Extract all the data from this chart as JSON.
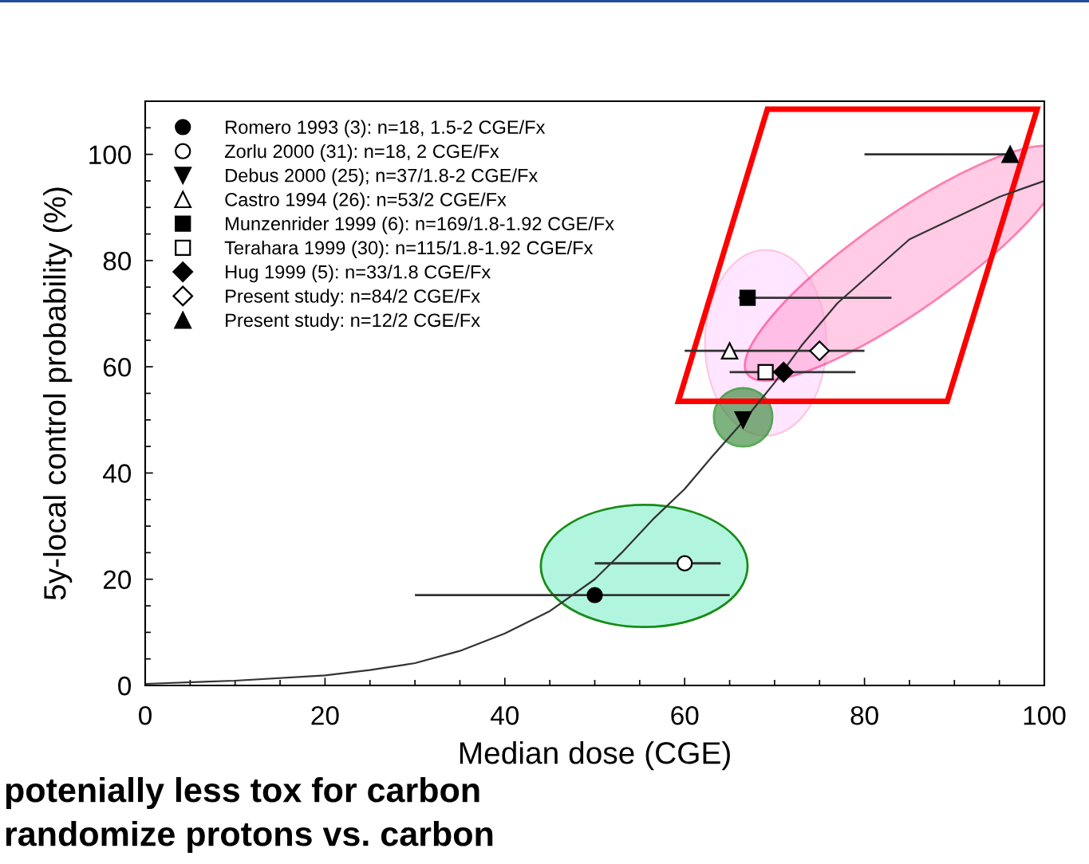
{
  "chart_data": {
    "type": "scatter",
    "xlabel": "Median dose (CGE)",
    "ylabel": "5y-local control probability (%)",
    "xlim": [
      0,
      100
    ],
    "ylim": [
      0,
      110
    ],
    "xticks": [
      0,
      {
        "value": 5,
        "label": null
      },
      {
        "value": 10,
        "label": null
      },
      {
        "value": 15,
        "label": null
      },
      20,
      {
        "value": 25,
        "label": null
      },
      {
        "value": 30,
        "label": null
      },
      {
        "value": 35,
        "label": null
      },
      40,
      {
        "value": 45,
        "label": null
      },
      {
        "value": 50,
        "label": null
      },
      {
        "value": 55,
        "label": null
      },
      60,
      {
        "value": 65,
        "label": null
      },
      {
        "value": 70,
        "label": null
      },
      {
        "value": 75,
        "label": null
      },
      80,
      {
        "value": 85,
        "label": null
      },
      {
        "value": 90,
        "label": null
      },
      {
        "value": 95,
        "label": null
      },
      100
    ],
    "yticks": [
      0,
      {
        "value": 5,
        "label": null
      },
      {
        "value": 10,
        "label": null
      },
      {
        "value": 15,
        "label": null
      },
      20,
      {
        "value": 25,
        "label": null
      },
      {
        "value": 30,
        "label": null
      },
      {
        "value": 35,
        "label": null
      },
      40,
      {
        "value": 45,
        "label": null
      },
      {
        "value": 50,
        "label": null
      },
      {
        "value": 55,
        "label": null
      },
      60,
      {
        "value": 65,
        "label": null
      },
      {
        "value": 70,
        "label": null
      },
      {
        "value": 75,
        "label": null
      },
      80,
      {
        "value": 85,
        "label": null
      },
      {
        "value": 90,
        "label": null
      },
      {
        "value": 95,
        "label": null
      },
      100,
      {
        "value": 105,
        "label": null
      }
    ],
    "grid": false,
    "legend": "top left",
    "series": [
      {
        "type": "line",
        "color": "#333333",
        "marker": "none",
        "line_style": "solid",
        "x": [
          0,
          10,
          20,
          25,
          30,
          35,
          40,
          45,
          50,
          53,
          56.6,
          60,
          63,
          66.5,
          70,
          73,
          77,
          81,
          85,
          90,
          95,
          100
        ],
        "values": [
          0.3,
          0.9,
          1.9,
          2.9,
          4.2,
          6.5,
          9.8,
          14,
          20,
          25,
          31.5,
          37,
          43,
          49.7,
          57,
          64,
          72,
          78,
          84,
          88,
          92,
          95
        ]
      },
      {
        "name": "Romero 1993 (3): n=18, 1.5-2 CGE/Fx",
        "color": "#000000",
        "marker": "circle",
        "x": [
          50
        ],
        "values": [
          17
        ],
        "xerrors": [
          [
            30,
            65
          ]
        ]
      },
      {
        "name": "Zorlu 2000 (31): n=18, 2 CGE/Fx",
        "color": "#ffffff",
        "marker": "circle",
        "x": [
          60
        ],
        "values": [
          23
        ],
        "xerrors": [
          [
            50,
            64
          ]
        ]
      },
      {
        "name": "Debus 2000 (25); n=37/1.8-2 CGE/Fx",
        "color": "#000000",
        "marker": "triangle-down",
        "x": [
          66.5
        ],
        "values": [
          50
        ]
      },
      {
        "name": "Castro 1994 (26): n=53/2 CGE/Fx",
        "color": "#ffffff",
        "marker": "triangle",
        "x": [
          65
        ],
        "values": [
          63
        ],
        "xerrors": [
          [
            60,
            80
          ]
        ]
      },
      {
        "name": "Munzenrider 1999 (6): n=169/1.8-1.92 CGE/Fx",
        "color": "#000000",
        "marker": "square",
        "x": [
          67
        ],
        "values": [
          73
        ],
        "xerrors": [
          [
            66,
            83
          ]
        ]
      },
      {
        "name": "Terahara 1999 (30): n=115/1.8-1.92 CGE/Fx",
        "color": "#ffffff",
        "marker": "square",
        "x": [
          69
        ],
        "values": [
          59
        ],
        "xerrors": [
          [
            65,
            79
          ]
        ]
      },
      {
        "name": "Hug 1999 (5): n=33/1.8 CGE/Fx",
        "color": "#000000",
        "marker": "diamond",
        "x": [
          71
        ],
        "values": [
          59
        ]
      },
      {
        "name": "Present study: n=84/2 CGE/Fx",
        "color": "#ffffff",
        "marker": "diamond",
        "x": [
          75
        ],
        "values": [
          63
        ]
      },
      {
        "name": "Present study: n=12/2 CGE/Fx",
        "color": "#000000",
        "marker": "triangle",
        "x": [
          96.2
        ],
        "values": [
          100
        ],
        "xerrors": [
          [
            80,
            96.2
          ]
        ]
      }
    ],
    "annotations": [
      "potenially less tox for carbon",
      "randomize protons vs. carbon"
    ]
  }
}
